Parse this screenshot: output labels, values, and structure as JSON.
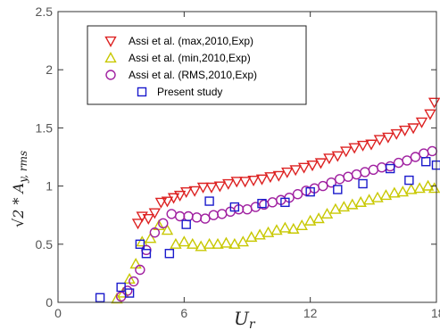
{
  "chart_data": {
    "type": "scatter",
    "title": "",
    "xlabel_base": "U",
    "xlabel_sub": "r",
    "ylabel_text": "√2 * A",
    "ylabel_sub": "y, rms",
    "xlim": [
      0,
      18
    ],
    "ylim": [
      0,
      2.5
    ],
    "x_ticks": [
      0,
      6,
      12,
      18
    ],
    "y_ticks": [
      0,
      0.5,
      1,
      1.5,
      2,
      2.5
    ],
    "x_tick_labels": [
      "0",
      "6",
      "12",
      "18"
    ],
    "y_tick_labels": [
      "0",
      "0.5",
      "1",
      "1.5",
      "2",
      "2.5"
    ],
    "grid": false,
    "legend_position": "top-left",
    "series": [
      {
        "name": "Assi et al. (max,2010,Exp)",
        "marker": "triangle-down",
        "color": "#dd2222",
        "x": [
          3.8,
          4.0,
          4.3,
          4.6,
          4.9,
          5.2,
          5.5,
          5.8,
          6.1,
          6.5,
          6.9,
          7.3,
          7.7,
          8.1,
          8.5,
          8.9,
          9.3,
          9.7,
          10.1,
          10.5,
          10.9,
          11.3,
          11.7,
          12.1,
          12.5,
          12.9,
          13.3,
          13.7,
          14.1,
          14.5,
          14.9,
          15.3,
          15.7,
          16.1,
          16.5,
          16.9,
          17.3,
          17.7,
          17.9
        ],
        "y": [
          0.68,
          0.74,
          0.72,
          0.77,
          0.86,
          0.87,
          0.9,
          0.92,
          0.95,
          0.96,
          0.99,
          0.99,
          1.0,
          1.02,
          1.04,
          1.04,
          1.05,
          1.06,
          1.08,
          1.09,
          1.12,
          1.14,
          1.16,
          1.18,
          1.2,
          1.24,
          1.26,
          1.3,
          1.33,
          1.35,
          1.36,
          1.4,
          1.42,
          1.45,
          1.48,
          1.5,
          1.55,
          1.62,
          1.72
        ]
      },
      {
        "name": "Assi et al. (min,2010,Exp)",
        "marker": "triangle-up",
        "color": "#c8c800",
        "x": [
          2.8,
          3.1,
          3.4,
          3.7,
          4.0,
          4.4,
          4.8,
          5.2,
          5.6,
          6.0,
          6.4,
          6.8,
          7.2,
          7.6,
          8.0,
          8.4,
          8.8,
          9.2,
          9.6,
          10.0,
          10.4,
          10.8,
          11.2,
          11.6,
          12.0,
          12.4,
          12.8,
          13.2,
          13.6,
          14.0,
          14.4,
          14.8,
          15.2,
          15.6,
          16.0,
          16.4,
          16.8,
          17.2,
          17.6,
          17.9
        ],
        "y": [
          0.03,
          0.08,
          0.2,
          0.33,
          0.52,
          0.55,
          0.66,
          0.62,
          0.5,
          0.52,
          0.5,
          0.48,
          0.5,
          0.5,
          0.51,
          0.5,
          0.52,
          0.56,
          0.58,
          0.6,
          0.62,
          0.64,
          0.63,
          0.66,
          0.7,
          0.72,
          0.76,
          0.8,
          0.82,
          0.84,
          0.86,
          0.88,
          0.9,
          0.92,
          0.94,
          0.95,
          0.97,
          0.98,
          1.0,
          0.98
        ]
      },
      {
        "name": "Assi et al. (RMS,2010,Exp)",
        "marker": "circle",
        "color": "#a020a0",
        "x": [
          3.0,
          3.3,
          3.6,
          3.9,
          4.2,
          4.6,
          5.0,
          5.4,
          5.8,
          6.2,
          6.6,
          7.0,
          7.4,
          7.8,
          8.2,
          8.6,
          9.0,
          9.4,
          9.8,
          10.2,
          10.6,
          11.0,
          11.4,
          11.8,
          12.2,
          12.6,
          13.0,
          13.4,
          13.8,
          14.2,
          14.6,
          15.0,
          15.4,
          15.8,
          16.2,
          16.6,
          17.0,
          17.4,
          17.8
        ],
        "y": [
          0.05,
          0.1,
          0.18,
          0.28,
          0.45,
          0.6,
          0.68,
          0.76,
          0.74,
          0.74,
          0.73,
          0.72,
          0.75,
          0.76,
          0.78,
          0.8,
          0.8,
          0.82,
          0.84,
          0.86,
          0.88,
          0.9,
          0.93,
          0.96,
          0.98,
          1.0,
          1.03,
          1.06,
          1.08,
          1.1,
          1.12,
          1.14,
          1.16,
          1.17,
          1.2,
          1.22,
          1.25,
          1.28,
          1.3
        ]
      },
      {
        "name": "Present study",
        "marker": "square",
        "color": "#1a1acc",
        "x": [
          2.0,
          3.0,
          3.4,
          3.9,
          4.2,
          5.3,
          6.1,
          7.2,
          8.4,
          9.7,
          10.8,
          12.0,
          13.3,
          14.5,
          15.8,
          16.7,
          17.5,
          18.0
        ],
        "y": [
          0.04,
          0.13,
          0.08,
          0.5,
          0.42,
          0.42,
          0.67,
          0.87,
          0.82,
          0.85,
          0.86,
          0.95,
          0.97,
          1.02,
          1.15,
          1.05,
          1.21,
          1.18
        ]
      }
    ]
  }
}
